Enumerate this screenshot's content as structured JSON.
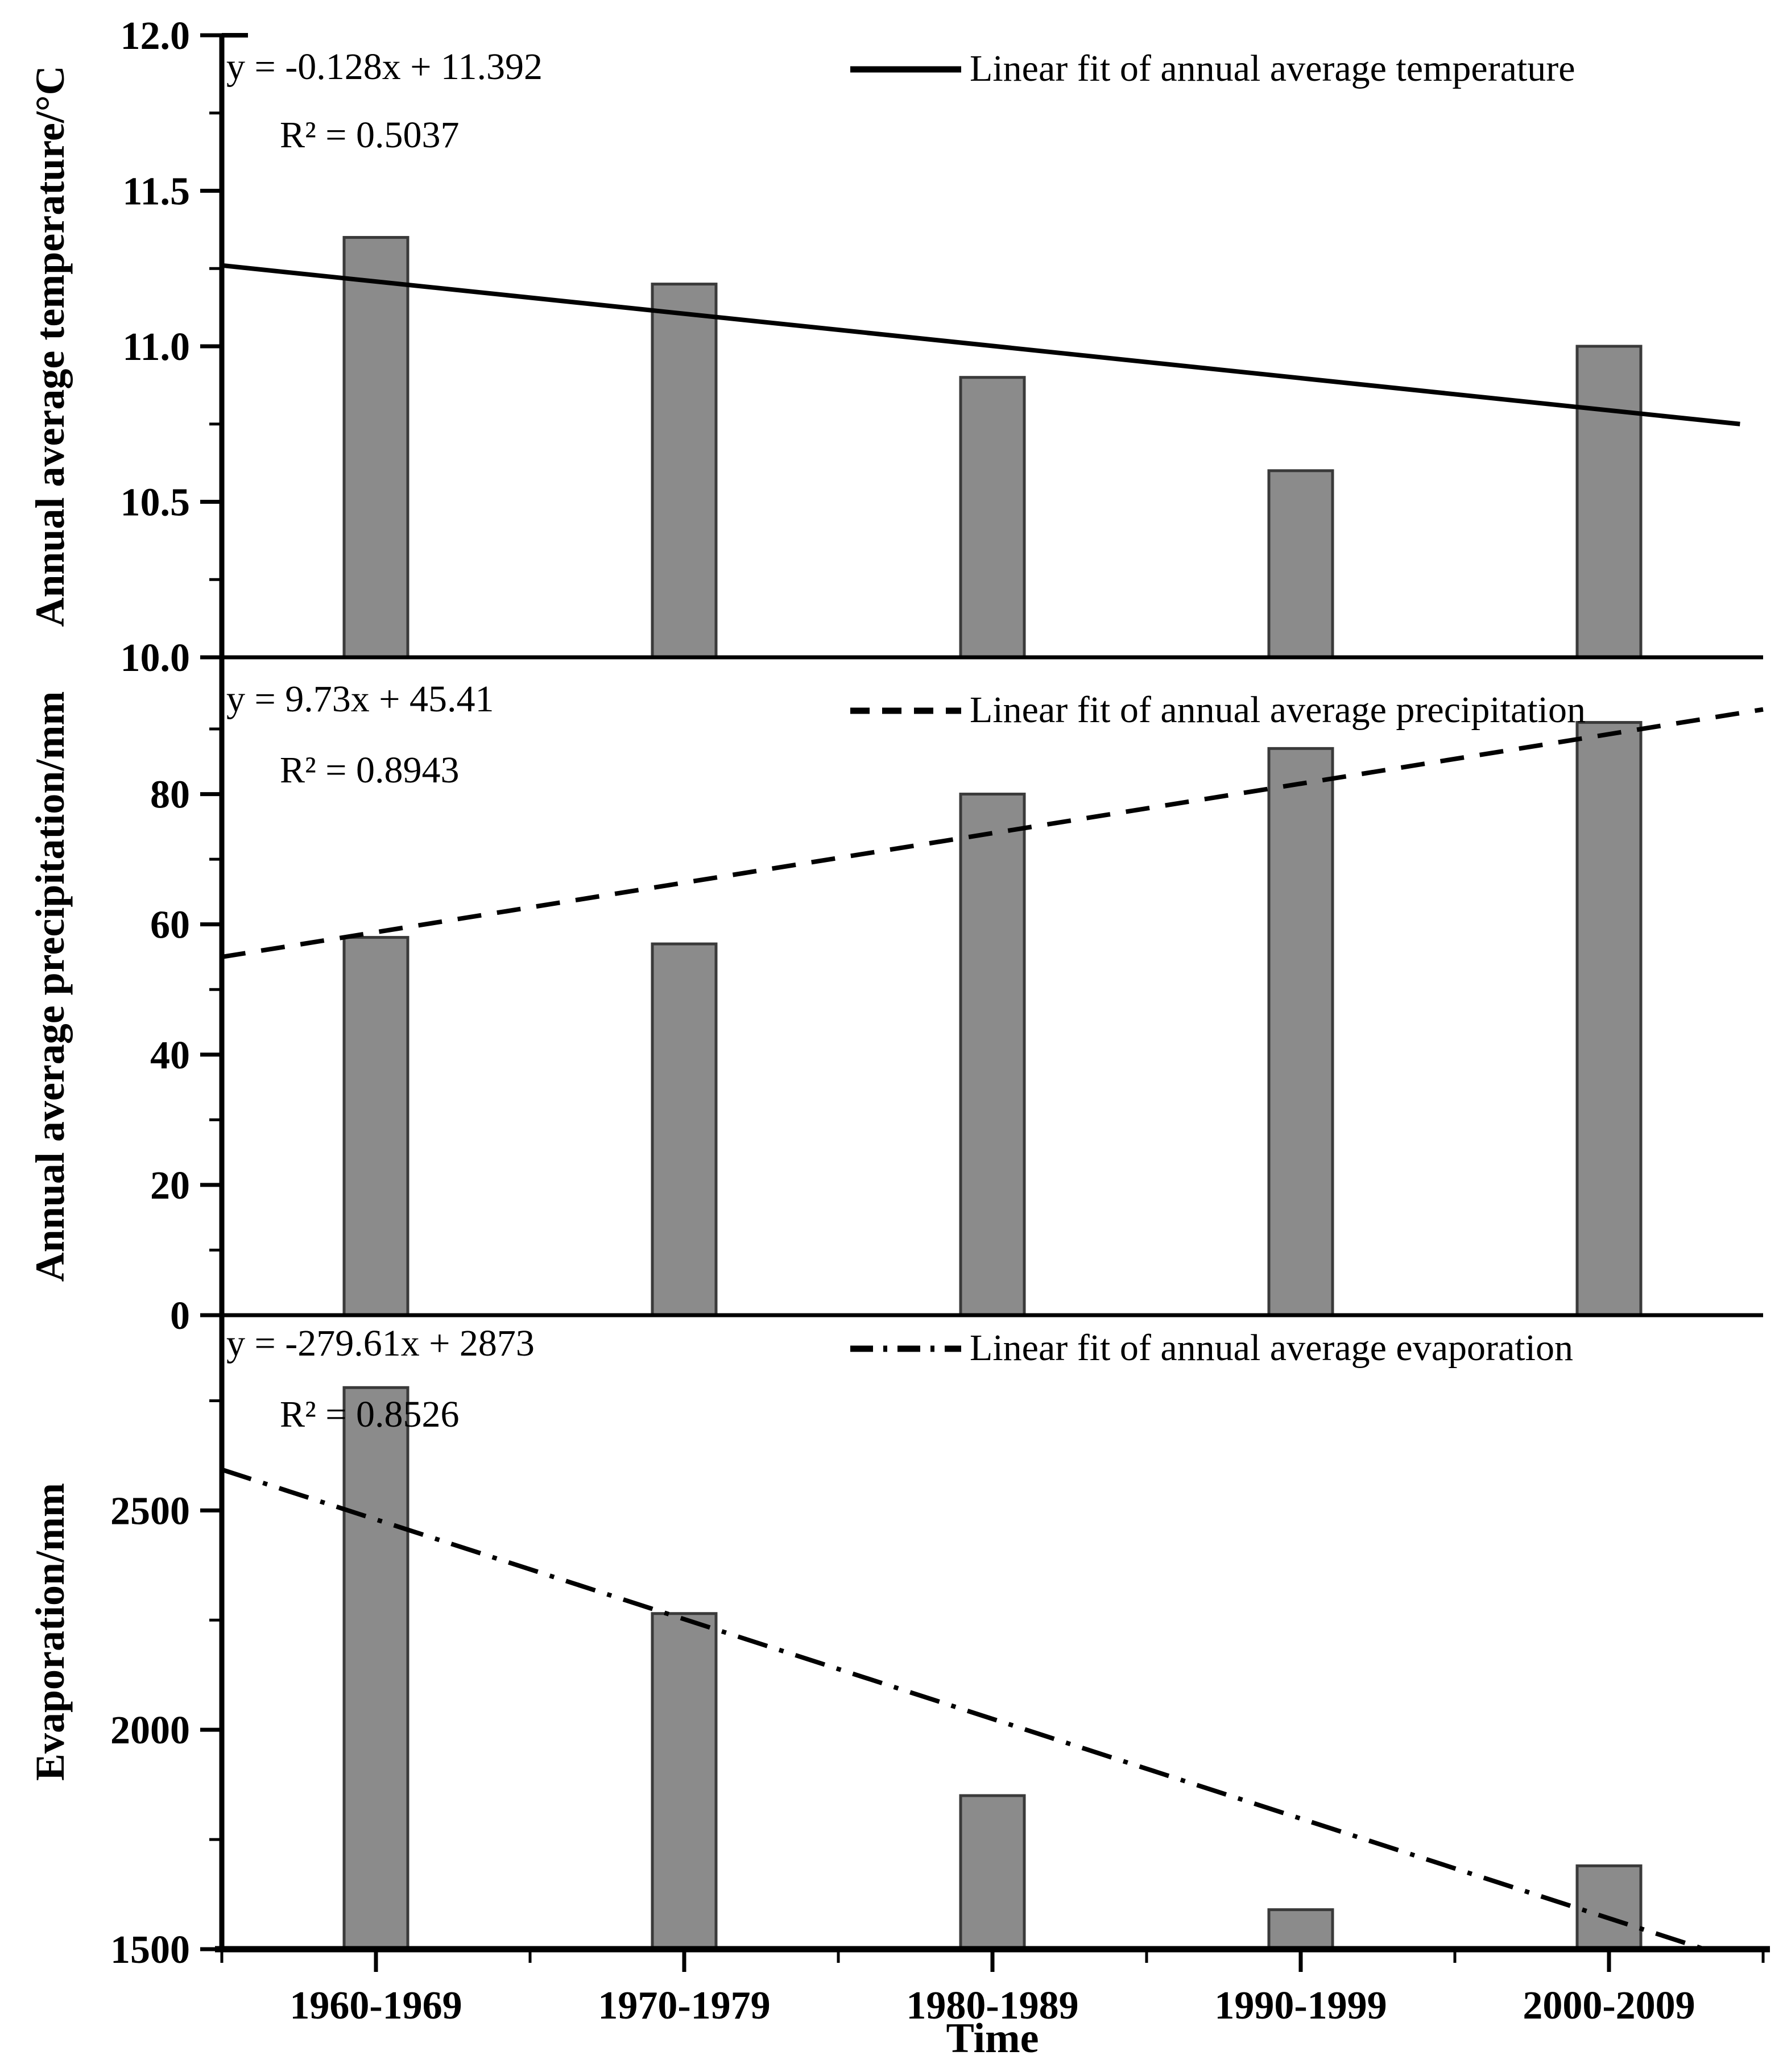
{
  "figure": {
    "background": "#ffffff",
    "text_color": "#000000"
  },
  "colors": {
    "bar_fill": "#8b8b8b",
    "bar_stroke": "#3a3a3a",
    "axis": "#000000",
    "trend_line": "#000000"
  },
  "x_axis": {
    "title": "Time",
    "categories": [
      "1960-1969",
      "1970-1979",
      "1980-1989",
      "1990-1999",
      "2000-2009"
    ]
  },
  "chart_data": [
    {
      "type": "bar",
      "panel": "annual-average-temperature",
      "ylabel": "Annual average temperature/°C",
      "categories": [
        "1960-1969",
        "1970-1979",
        "1980-1989",
        "1990-1999",
        "2000-2009"
      ],
      "values": [
        11.35,
        11.2,
        10.9,
        10.6,
        11.0
      ],
      "ylim": [
        10.0,
        12.0
      ],
      "ytick_values": [
        10.0,
        10.5,
        11.0,
        11.5,
        12.0
      ],
      "ytick_labels": [
        "10.0",
        "10.5",
        "11.0",
        "11.5",
        "12.0"
      ],
      "minor_tick_values": [
        10.25,
        10.75,
        11.25,
        11.75
      ],
      "grid": false,
      "equation": "y = -0.128x + 11.392",
      "r_squared": "R² = 0.5037",
      "legend": "Linear fit of annual average temperature",
      "legend_position": "top-right-inside",
      "trend_style": "solid",
      "trend_line": {
        "start_value": 11.26,
        "end_value": 10.75,
        "start_frac": 0.0,
        "end_frac": 0.985
      }
    },
    {
      "type": "bar",
      "panel": "annual-average-precipitation",
      "ylabel": "Annual average precipitation/mm",
      "categories": [
        "1960-1969",
        "1970-1979",
        "1980-1989",
        "1990-1999",
        "2000-2009"
      ],
      "values": [
        58,
        57,
        80,
        87,
        91
      ],
      "ylim": [
        0,
        101
      ],
      "ytick_values": [
        0,
        20,
        40,
        60,
        80
      ],
      "ytick_labels": [
        "0",
        "20",
        "40",
        "60",
        "80"
      ],
      "minor_tick_values": [
        10,
        30,
        50,
        70,
        90
      ],
      "grid": false,
      "equation": "y = 9.73x + 45.41",
      "r_squared": "R² = 0.8943",
      "legend": "Linear fit of annual average precipitation",
      "legend_position": "top-right-inside",
      "trend_style": "dashed",
      "trend_line": {
        "start_value": 55,
        "end_value": 93,
        "start_frac": 0.0,
        "end_frac": 1.0
      }
    },
    {
      "type": "bar",
      "panel": "annual-average-evaporation",
      "ylabel": "Evaporation/mm",
      "categories": [
        "1960-1969",
        "1970-1979",
        "1980-1989",
        "1990-1999",
        "2000-2009"
      ],
      "values": [
        2780,
        2265,
        1850,
        1590,
        1690
      ],
      "ylim": [
        1500,
        2945
      ],
      "ytick_values": [
        1500,
        2000,
        2500
      ],
      "ytick_labels": [
        "1500",
        "2000",
        "2500"
      ],
      "minor_tick_values": [
        1750,
        2250,
        2750
      ],
      "grid": false,
      "equation": "y = -279.61x + 2873",
      "r_squared": "R² = 0.8526",
      "legend": "Linear fit of annual average evaporation",
      "legend_position": "top-right-inside",
      "trend_style": "dashdot",
      "trend_line": {
        "start_value": 2593,
        "end_value": 1500,
        "start_frac": 0.0,
        "end_frac": 0.962
      }
    }
  ]
}
